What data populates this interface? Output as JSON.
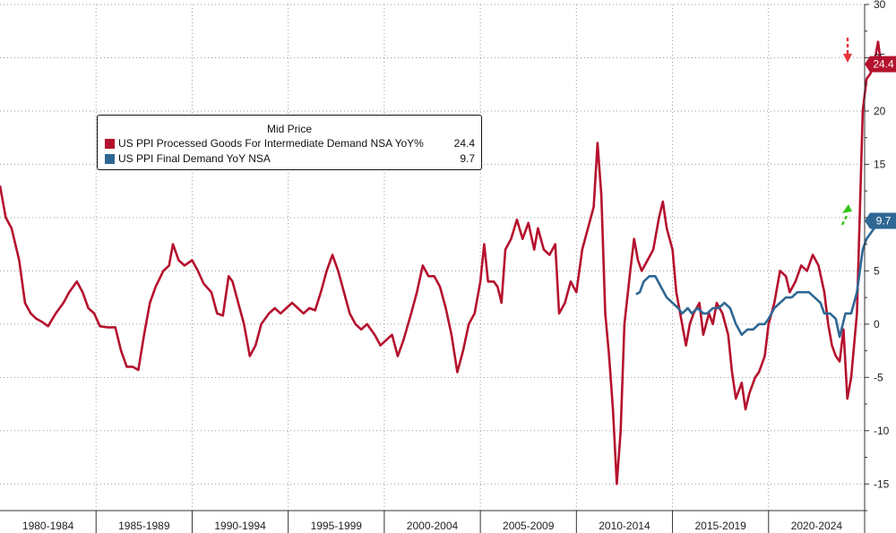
{
  "legend": {
    "title": "Mid Price",
    "entries": [
      {
        "name": "US PPI Processed Goods For Intermediate Demand NSA YoY%",
        "value": "24.4"
      },
      {
        "name": "US PPI Final Demand YoY NSA",
        "value": "9.7"
      }
    ]
  },
  "chart_data": {
    "type": "line",
    "y_ticks": [
      30,
      25,
      20,
      15,
      10,
      5,
      0,
      -5,
      -10,
      -15
    ],
    "y_tick_labels": [
      "30",
      "25",
      "20",
      "15",
      "10",
      "5",
      "0",
      "-5",
      "-10",
      "-15"
    ],
    "ylim": [
      -17.5,
      30
    ],
    "xlim": [
      1979.0,
      2024.0
    ],
    "x_period_boundaries": [
      1984,
      1989,
      1994,
      1999,
      2004,
      2009,
      2014,
      2019,
      2024
    ],
    "x_period_labels": [
      "1980-1984",
      "1985-1989",
      "1990-1994",
      "1995-1999",
      "2000-2004",
      "2005-2009",
      "2010-2014",
      "2015-2019",
      "2020-2024"
    ],
    "grid": true,
    "y_axis_side": "right",
    "legend_position": "top-left",
    "series": [
      {
        "name": "US PPI Processed Goods For Intermediate Demand NSA YoY%",
        "color": "#b5122e",
        "last_value_label": "24.4",
        "points": [
          [
            1979.0,
            13
          ],
          [
            1979.3,
            10
          ],
          [
            1979.6,
            9
          ],
          [
            1980.0,
            6
          ],
          [
            1980.3,
            2
          ],
          [
            1980.6,
            1
          ],
          [
            1980.9,
            0.5
          ],
          [
            1981.2,
            0.2
          ],
          [
            1981.5,
            -0.2
          ],
          [
            1981.9,
            1
          ],
          [
            1982.3,
            2
          ],
          [
            1982.6,
            3
          ],
          [
            1983.0,
            4
          ],
          [
            1983.3,
            3
          ],
          [
            1983.6,
            1.5
          ],
          [
            1983.9,
            1
          ],
          [
            1984.2,
            -0.2
          ],
          [
            1984.6,
            -0.3
          ],
          [
            1985.0,
            -0.3
          ],
          [
            1985.3,
            -2.5
          ],
          [
            1985.6,
            -4
          ],
          [
            1985.9,
            -4
          ],
          [
            1986.2,
            -4.3
          ],
          [
            1986.5,
            -1
          ],
          [
            1986.8,
            2
          ],
          [
            1987.1,
            3.5
          ],
          [
            1987.5,
            5
          ],
          [
            1987.8,
            5.5
          ],
          [
            1988.0,
            7.5
          ],
          [
            1988.3,
            6
          ],
          [
            1988.6,
            5.5
          ],
          [
            1989.0,
            6
          ],
          [
            1989.3,
            5
          ],
          [
            1989.6,
            3.8
          ],
          [
            1990.0,
            3
          ],
          [
            1990.3,
            1
          ],
          [
            1990.6,
            0.8
          ],
          [
            1990.9,
            4.5
          ],
          [
            1991.1,
            4
          ],
          [
            1991.4,
            2
          ],
          [
            1991.7,
            0
          ],
          [
            1992.0,
            -3
          ],
          [
            1992.3,
            -2
          ],
          [
            1992.6,
            0
          ],
          [
            1993.0,
            1
          ],
          [
            1993.3,
            1.5
          ],
          [
            1993.6,
            1
          ],
          [
            1993.9,
            1.5
          ],
          [
            1994.2,
            2
          ],
          [
            1994.5,
            1.5
          ],
          [
            1994.8,
            1
          ],
          [
            1995.1,
            1.5
          ],
          [
            1995.4,
            1.3
          ],
          [
            1995.7,
            3
          ],
          [
            1996.0,
            5
          ],
          [
            1996.3,
            6.5
          ],
          [
            1996.6,
            5
          ],
          [
            1996.9,
            3
          ],
          [
            1997.2,
            1
          ],
          [
            1997.5,
            0
          ],
          [
            1997.8,
            -0.5
          ],
          [
            1998.1,
            0
          ],
          [
            1998.5,
            -1
          ],
          [
            1998.8,
            -2
          ],
          [
            1999.1,
            -1.5
          ],
          [
            1999.4,
            -1
          ],
          [
            1999.7,
            -3
          ],
          [
            2000.0,
            -1.5
          ],
          [
            2000.4,
            1
          ],
          [
            2000.7,
            3
          ],
          [
            2001.0,
            5.5
          ],
          [
            2001.3,
            4.5
          ],
          [
            2001.6,
            4.5
          ],
          [
            2001.9,
            3.5
          ],
          [
            2002.2,
            1.5
          ],
          [
            2002.5,
            -1
          ],
          [
            2002.8,
            -4.5
          ],
          [
            2003.1,
            -2.5
          ],
          [
            2003.4,
            0
          ],
          [
            2003.7,
            1
          ],
          [
            2004.0,
            4
          ],
          [
            2004.2,
            7.5
          ],
          [
            2004.4,
            4
          ],
          [
            2004.7,
            4
          ],
          [
            2004.9,
            3.5
          ],
          [
            2005.1,
            2
          ],
          [
            2005.3,
            7
          ],
          [
            2005.6,
            8
          ],
          [
            2005.9,
            9.8
          ],
          [
            2006.2,
            8
          ],
          [
            2006.5,
            9.5
          ],
          [
            2006.8,
            7
          ],
          [
            2007.0,
            9
          ],
          [
            2007.3,
            7
          ],
          [
            2007.6,
            6.5
          ],
          [
            2007.9,
            7.5
          ],
          [
            2008.1,
            1
          ],
          [
            2008.4,
            2
          ],
          [
            2008.7,
            4
          ],
          [
            2009.0,
            3
          ],
          [
            2009.3,
            7
          ],
          [
            2009.6,
            9
          ],
          [
            2009.9,
            11
          ],
          [
            2010.1,
            17
          ],
          [
            2010.3,
            12
          ],
          [
            2010.5,
            1
          ],
          [
            2010.7,
            -3
          ],
          [
            2010.9,
            -8
          ],
          [
            2011.1,
            -15
          ],
          [
            2011.3,
            -10
          ],
          [
            2011.5,
            0
          ],
          [
            2011.8,
            5
          ],
          [
            2012.0,
            8
          ],
          [
            2012.2,
            6
          ],
          [
            2012.4,
            5
          ],
          [
            2012.7,
            6
          ],
          [
            2013.0,
            7
          ],
          [
            2013.3,
            10
          ],
          [
            2013.5,
            11.5
          ],
          [
            2013.7,
            9
          ],
          [
            2014.0,
            7
          ],
          [
            2014.2,
            3
          ],
          [
            2014.5,
            0
          ],
          [
            2014.7,
            -2
          ],
          [
            2014.9,
            0
          ],
          [
            2015.1,
            1
          ],
          [
            2015.4,
            2
          ],
          [
            2015.6,
            -1
          ],
          [
            2015.9,
            1
          ],
          [
            2016.1,
            0
          ],
          [
            2016.3,
            2
          ],
          [
            2016.6,
            1
          ],
          [
            2016.9,
            -1
          ],
          [
            2017.1,
            -4.5
          ],
          [
            2017.3,
            -7
          ],
          [
            2017.6,
            -5.5
          ],
          [
            2017.8,
            -8
          ],
          [
            2018.0,
            -6.5
          ],
          [
            2018.3,
            -5
          ],
          [
            2018.5,
            -4.5
          ],
          [
            2018.8,
            -3
          ],
          [
            2019.0,
            0
          ],
          [
            2019.3,
            2
          ],
          [
            2019.6,
            5
          ],
          [
            2019.9,
            4.5
          ],
          [
            2020.1,
            3
          ],
          [
            2020.4,
            4
          ],
          [
            2020.7,
            5.5
          ],
          [
            2021.0,
            5
          ],
          [
            2021.3,
            6.5
          ],
          [
            2021.6,
            5.5
          ],
          [
            2021.9,
            3
          ],
          [
            2022.1,
            0
          ],
          [
            2022.3,
            -2
          ],
          [
            2022.5,
            -3
          ],
          [
            2022.7,
            -3.5
          ],
          [
            2022.9,
            -0.5
          ],
          [
            2023.1,
            -7
          ],
          [
            2023.3,
            -5
          ],
          [
            2023.6,
            1
          ],
          [
            2023.9,
            20
          ],
          [
            2024.1,
            23
          ],
          [
            2024.3,
            23.5
          ],
          [
            2024.5,
            24.5
          ],
          [
            2024.7,
            26.5
          ],
          [
            2024.85,
            24.4
          ]
        ]
      },
      {
        "name": "US PPI Final Demand YoY NSA",
        "color": "#2e6794",
        "last_value_label": "9.7",
        "points": [
          [
            2012.1,
            2.8
          ],
          [
            2012.3,
            3
          ],
          [
            2012.5,
            4
          ],
          [
            2012.8,
            4.5
          ],
          [
            2013.1,
            4.5
          ],
          [
            2013.4,
            3.5
          ],
          [
            2013.7,
            2.5
          ],
          [
            2014.0,
            2
          ],
          [
            2014.3,
            1.5
          ],
          [
            2014.5,
            1
          ],
          [
            2014.8,
            1.5
          ],
          [
            2015.0,
            1
          ],
          [
            2015.3,
            1.5
          ],
          [
            2015.6,
            1
          ],
          [
            2015.8,
            1
          ],
          [
            2016.1,
            1.5
          ],
          [
            2016.4,
            1.5
          ],
          [
            2016.7,
            2
          ],
          [
            2017.0,
            1.5
          ],
          [
            2017.3,
            0
          ],
          [
            2017.6,
            -1
          ],
          [
            2017.9,
            -0.5
          ],
          [
            2018.2,
            -0.5
          ],
          [
            2018.5,
            0
          ],
          [
            2018.8,
            0
          ],
          [
            2019.0,
            0.5
          ],
          [
            2019.3,
            1.5
          ],
          [
            2019.6,
            2
          ],
          [
            2019.9,
            2.5
          ],
          [
            2020.2,
            2.5
          ],
          [
            2020.5,
            3
          ],
          [
            2020.8,
            3
          ],
          [
            2021.1,
            3
          ],
          [
            2021.4,
            2.5
          ],
          [
            2021.7,
            2
          ],
          [
            2021.9,
            1
          ],
          [
            2022.2,
            1
          ],
          [
            2022.5,
            0.5
          ],
          [
            2022.7,
            -1.2
          ],
          [
            2023.0,
            1
          ],
          [
            2023.3,
            1
          ],
          [
            2023.6,
            3
          ],
          [
            2023.9,
            7
          ],
          [
            2024.1,
            8
          ],
          [
            2024.3,
            8.5
          ],
          [
            2024.5,
            9
          ],
          [
            2024.7,
            9.7
          ]
        ]
      }
    ]
  }
}
